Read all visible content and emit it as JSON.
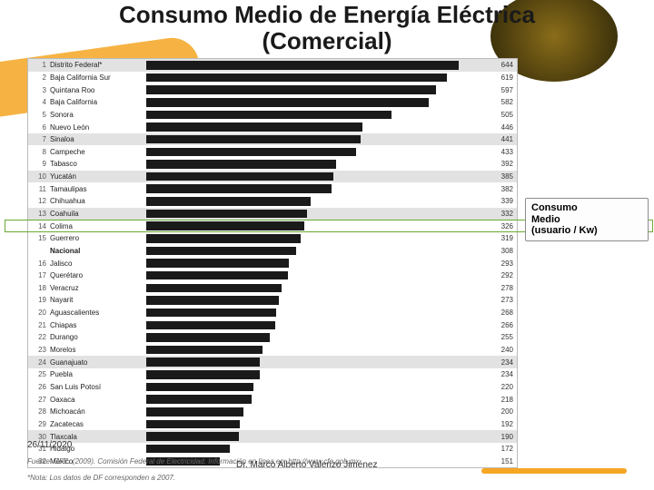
{
  "title_line1": "Consumo Medio de Energía Eléctrica",
  "title_line2": "(Comercial)",
  "chart": {
    "type": "bar-horizontal",
    "max_value": 700,
    "bar_color": "#1a1a1a",
    "shaded_bg": "#e2e2e2",
    "highlight_border": "#6aa835",
    "rows": [
      {
        "rank": "1",
        "state": "Distrito Federal*",
        "value": 644,
        "shaded": true
      },
      {
        "rank": "2",
        "state": "Baja California Sur",
        "value": 619,
        "shaded": false
      },
      {
        "rank": "3",
        "state": "Quintana Roo",
        "value": 597,
        "shaded": false
      },
      {
        "rank": "4",
        "state": "Baja California",
        "value": 582,
        "shaded": false
      },
      {
        "rank": "5",
        "state": "Sonora",
        "value": 505,
        "shaded": false
      },
      {
        "rank": "6",
        "state": "Nuevo León",
        "value": 446,
        "shaded": false
      },
      {
        "rank": "7",
        "state": "Sinaloa",
        "value": 441,
        "shaded": true
      },
      {
        "rank": "8",
        "state": "Campeche",
        "value": 433,
        "shaded": false
      },
      {
        "rank": "9",
        "state": "Tabasco",
        "value": 392,
        "shaded": false
      },
      {
        "rank": "10",
        "state": "Yucatán",
        "value": 385,
        "shaded": true
      },
      {
        "rank": "11",
        "state": "Tamaulipas",
        "value": 382,
        "shaded": false
      },
      {
        "rank": "12",
        "state": "Chihuahua",
        "value": 339,
        "shaded": false
      },
      {
        "rank": "13",
        "state": "Coahuila",
        "value": 332,
        "shaded": true
      },
      {
        "rank": "14",
        "state": "Colima",
        "value": 326,
        "shaded": false,
        "highlight": true
      },
      {
        "rank": "15",
        "state": "Guerrero",
        "value": 319,
        "shaded": false
      },
      {
        "rank": "",
        "state": "Nacional",
        "value": 308,
        "shaded": false,
        "bold": true
      },
      {
        "rank": "16",
        "state": "Jalisco",
        "value": 293,
        "shaded": false
      },
      {
        "rank": "17",
        "state": "Querétaro",
        "value": 292,
        "shaded": false
      },
      {
        "rank": "18",
        "state": "Veracruz",
        "value": 278,
        "shaded": false
      },
      {
        "rank": "19",
        "state": "Nayarit",
        "value": 273,
        "shaded": false
      },
      {
        "rank": "20",
        "state": "Aguascalientes",
        "value": 268,
        "shaded": false
      },
      {
        "rank": "21",
        "state": "Chiapas",
        "value": 266,
        "shaded": false
      },
      {
        "rank": "22",
        "state": "Durango",
        "value": 255,
        "shaded": false
      },
      {
        "rank": "23",
        "state": "Morelos",
        "value": 240,
        "shaded": false
      },
      {
        "rank": "24",
        "state": "Guanajuato",
        "value": 234,
        "shaded": true
      },
      {
        "rank": "25",
        "state": "Puebla",
        "value": 234,
        "shaded": false
      },
      {
        "rank": "26",
        "state": "San Luis Potosí",
        "value": 220,
        "shaded": false
      },
      {
        "rank": "27",
        "state": "Oaxaca",
        "value": 218,
        "shaded": false
      },
      {
        "rank": "28",
        "state": "Michoacán",
        "value": 200,
        "shaded": false
      },
      {
        "rank": "29",
        "state": "Zacatecas",
        "value": 192,
        "shaded": false
      },
      {
        "rank": "30",
        "state": "Tlaxcala",
        "value": 190,
        "shaded": true
      },
      {
        "rank": "31",
        "state": "Hidalgo",
        "value": 172,
        "shaded": false
      },
      {
        "rank": "32",
        "state": "México",
        "value": 151,
        "shaded": false
      }
    ]
  },
  "annotation": {
    "line1": "Consumo",
    "line2": "Medio",
    "line3": "(usuario / Kw)"
  },
  "footer": {
    "date": "26/11/2020",
    "author": "Dr. Marco Alberto Valenzo Jiménez",
    "source": "Fuente: CFE. (2009). Comisión Federal de Electricidad. Información en línea en: http://www.cfe.gob.mx",
    "note": "*Nota: Los datos de DF corresponden a 2007."
  },
  "colors": {
    "accent": "#f5a623",
    "title_text": "#1a1a1a",
    "background": "#ffffff"
  }
}
